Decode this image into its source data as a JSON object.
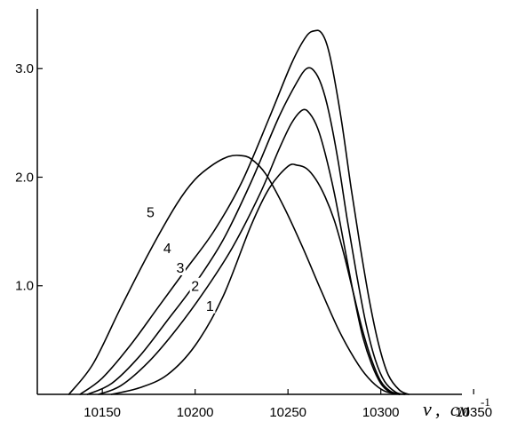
{
  "chart_data": {
    "type": "line",
    "title": "",
    "xlabel": {
      "symbol": "ν",
      "unit": "см",
      "exponent": "-1"
    },
    "ylabel": "",
    "xlim": [
      10115,
      10370
    ],
    "ylim": [
      0,
      3.55
    ],
    "x_ticks": [
      10150,
      10200,
      10250,
      10300,
      10350
    ],
    "y_ticks": [
      1.0,
      2.0,
      3.0
    ],
    "y_tick_labels": [
      "1.0",
      "2.0",
      "3.0"
    ],
    "grid": false,
    "legend": "none",
    "line_color": "#000000",
    "series": [
      {
        "name": "1",
        "x": [
          10155,
          10170,
          10185,
          10200,
          10215,
          10230,
          10240,
          10250,
          10255,
          10260,
          10265,
          10270,
          10275,
          10280,
          10285,
          10290,
          10295,
          10300,
          10305,
          10310
        ],
        "y": [
          0.0,
          0.06,
          0.18,
          0.45,
          0.9,
          1.55,
          1.9,
          2.1,
          2.11,
          2.08,
          1.98,
          1.82,
          1.6,
          1.3,
          0.95,
          0.6,
          0.32,
          0.12,
          0.03,
          0.0
        ]
      },
      {
        "name": "2",
        "x": [
          10148,
          10160,
          10175,
          10190,
          10205,
          10220,
          10235,
          10245,
          10252,
          10258,
          10262,
          10266,
          10270,
          10275,
          10280,
          10285,
          10290,
          10295,
          10300,
          10305,
          10310
        ],
        "y": [
          0.0,
          0.08,
          0.3,
          0.6,
          0.95,
          1.35,
          1.85,
          2.25,
          2.5,
          2.62,
          2.58,
          2.45,
          2.22,
          1.85,
          1.4,
          0.95,
          0.55,
          0.28,
          0.1,
          0.02,
          0.0
        ]
      },
      {
        "name": "3",
        "x": [
          10142,
          10155,
          10170,
          10185,
          10200,
          10215,
          10230,
          10245,
          10255,
          10260,
          10264,
          10268,
          10272,
          10277,
          10282,
          10287,
          10292,
          10297,
          10302,
          10308,
          10313
        ],
        "y": [
          0.0,
          0.1,
          0.35,
          0.68,
          1.02,
          1.42,
          1.95,
          2.55,
          2.88,
          3.0,
          2.98,
          2.85,
          2.6,
          2.15,
          1.6,
          1.1,
          0.65,
          0.32,
          0.12,
          0.02,
          0.0
        ]
      },
      {
        "name": "4",
        "x": [
          10138,
          10150,
          10165,
          10180,
          10195,
          10210,
          10225,
          10240,
          10252,
          10260,
          10265,
          10268,
          10271,
          10274,
          10279,
          10284,
          10289,
          10294,
          10299,
          10304,
          10310,
          10315
        ],
        "y": [
          0.0,
          0.15,
          0.45,
          0.8,
          1.15,
          1.5,
          1.95,
          2.55,
          3.05,
          3.3,
          3.35,
          3.33,
          3.22,
          3.0,
          2.5,
          1.9,
          1.35,
          0.85,
          0.45,
          0.18,
          0.04,
          0.0
        ]
      },
      {
        "name": "5",
        "x": [
          10132,
          10145,
          10160,
          10175,
          10190,
          10200,
          10210,
          10218,
          10224,
          10230,
          10238,
          10248,
          10258,
          10268,
          10278,
          10288,
          10295,
          10302,
          10310
        ],
        "y": [
          0.0,
          0.28,
          0.8,
          1.3,
          1.75,
          1.98,
          2.12,
          2.19,
          2.2,
          2.17,
          2.03,
          1.72,
          1.35,
          0.95,
          0.57,
          0.27,
          0.12,
          0.03,
          0.0
        ]
      }
    ],
    "curve_labels": [
      {
        "text": "5",
        "x": 10176,
        "y": 1.68
      },
      {
        "text": "4",
        "x": 10185,
        "y": 1.35
      },
      {
        "text": "3",
        "x": 10192,
        "y": 1.17
      },
      {
        "text": "2",
        "x": 10200,
        "y": 1.0
      },
      {
        "text": "1",
        "x": 10208,
        "y": 0.82
      }
    ]
  }
}
